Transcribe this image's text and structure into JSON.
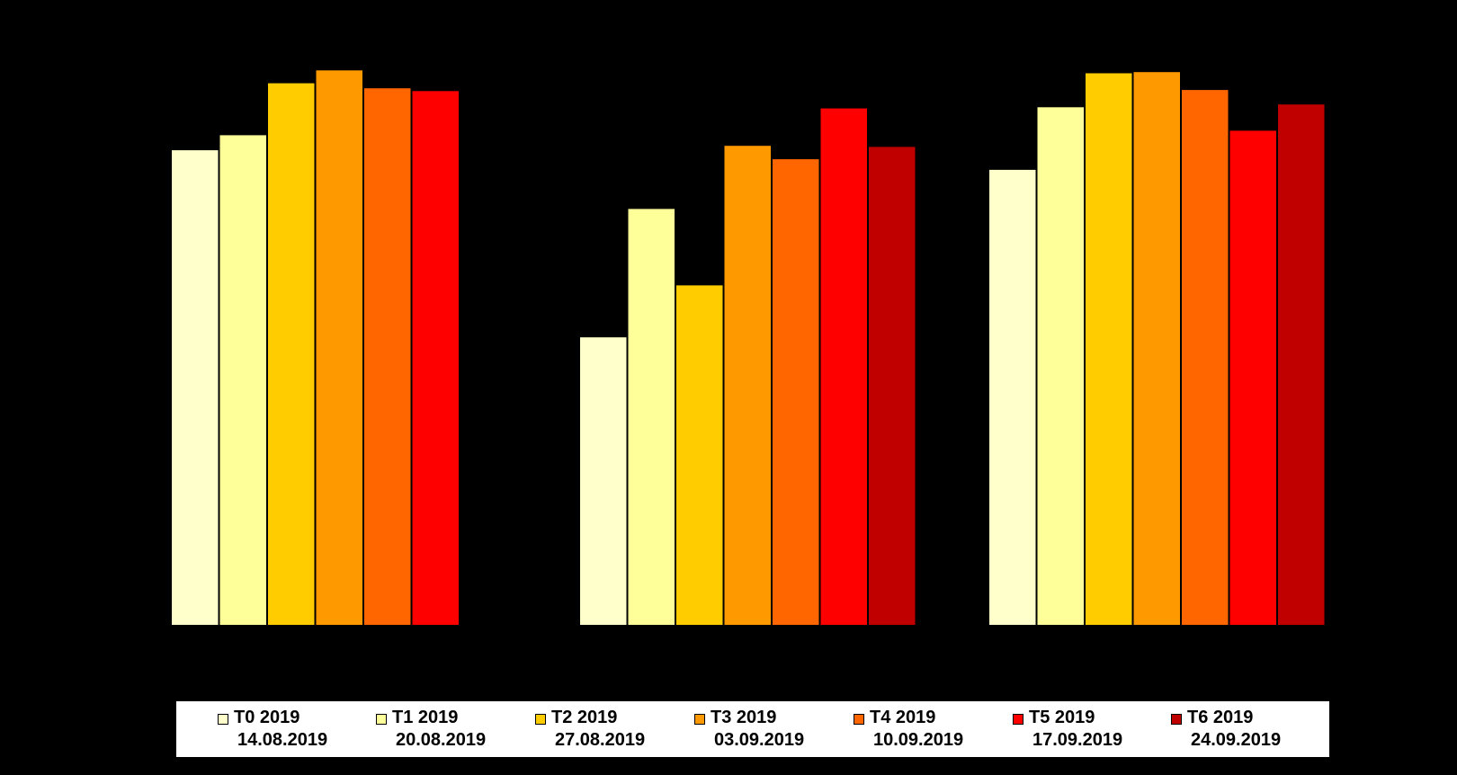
{
  "chart_data": {
    "type": "bar",
    "title": "",
    "xlabel": "",
    "ylabel": "",
    "categories": [
      "",
      "",
      ""
    ],
    "ylim": [
      0,
      100
    ],
    "grid": false,
    "legend_position": "bottom",
    "series": [
      {
        "name": "T0 2019",
        "date": "14.08.2019",
        "color": "#FFFFCC",
        "values": [
          85.0,
          51.5,
          81.5
        ]
      },
      {
        "name": "T1 2019",
        "date": "20.08.2019",
        "color": "#FFFF99",
        "values": [
          87.7,
          74.5,
          92.7
        ]
      },
      {
        "name": "T2 2019",
        "date": "27.08.2019",
        "color": "#FFCC00",
        "values": [
          97.0,
          60.8,
          98.8
        ]
      },
      {
        "name": "T3 2019",
        "date": "03.09.2019",
        "color": "#FF9900",
        "values": [
          99.3,
          85.8,
          99.0
        ]
      },
      {
        "name": "T4 2019",
        "date": "10.09.2019",
        "color": "#FF6600",
        "values": [
          96.1,
          83.4,
          95.8
        ]
      },
      {
        "name": "T5 2019",
        "date": "17.09.2019",
        "color": "#FF0000",
        "values": [
          95.6,
          92.5,
          88.5
        ]
      },
      {
        "name": "T6 2019",
        "date": "24.09.2019",
        "color": "#C00000",
        "values": [
          null,
          85.6,
          93.2
        ]
      }
    ]
  }
}
